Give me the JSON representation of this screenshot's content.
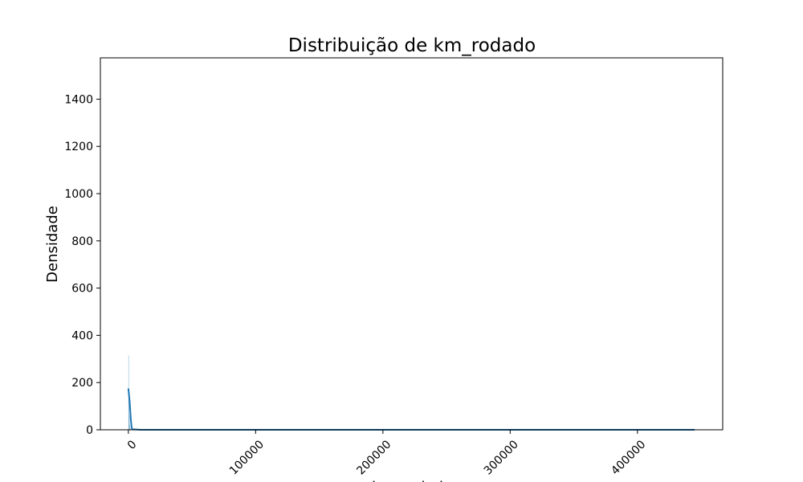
{
  "chart_data": {
    "type": "histogram",
    "title": "Distribuição de km_rodado",
    "xlabel": "km_rodado",
    "ylabel": "Densidade",
    "xlim": [
      -22000,
      467000
    ],
    "ylim": [
      0,
      1575
    ],
    "x_ticks": [
      0,
      100000,
      200000,
      300000,
      400000
    ],
    "x_tick_labels": [
      "0",
      "100000",
      "200000",
      "300000",
      "400000"
    ],
    "x_tick_rotation": 45,
    "y_ticks": [
      0,
      200,
      400,
      600,
      800,
      1000,
      1200,
      1400
    ],
    "y_tick_labels": [
      "0",
      "200",
      "400",
      "600",
      "800",
      "1000",
      "1200",
      "1400"
    ],
    "histogram": {
      "bins": [
        {
          "x0": 0,
          "x1": 300,
          "value": 315
        },
        {
          "x0": 300,
          "x1": 600,
          "value": 165
        },
        {
          "x0": 600,
          "x1": 900,
          "value": 60
        },
        {
          "x0": 900,
          "x1": 1200,
          "value": 20
        },
        {
          "x0": 1200,
          "x1": 1800,
          "value": 6
        }
      ]
    },
    "kde": {
      "x": [
        0,
        1000,
        2000,
        2500,
        3000,
        10000,
        100000,
        200000,
        300000,
        400000,
        445000
      ],
      "y": [
        175,
        120,
        40,
        12,
        2,
        0,
        0,
        0,
        0,
        0,
        0
      ]
    },
    "colors": {
      "bar": "#1f77b4",
      "line": "#1f77b4",
      "axes": "#000000"
    },
    "grid": false
  }
}
